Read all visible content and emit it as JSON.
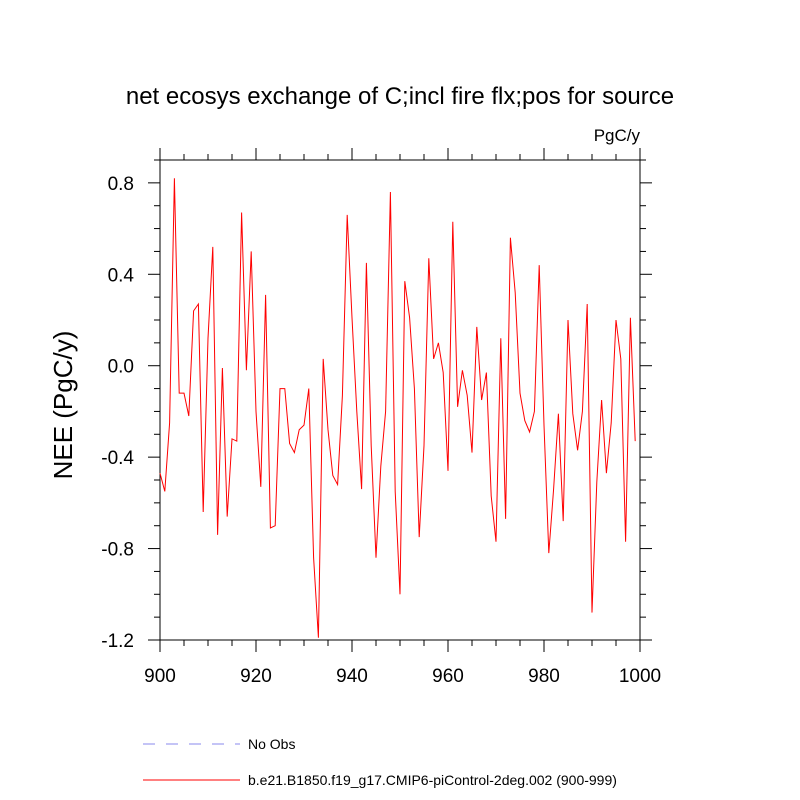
{
  "chart_data": {
    "type": "line",
    "title": "net ecosys exchange of C;incl fire flx;pos for source",
    "units": "PgC/y",
    "ylabel": "NEE  (PgC/y)",
    "xlabel": "",
    "xlim": [
      900,
      1000
    ],
    "ylim": [
      -1.2,
      0.9
    ],
    "x_ticks": [
      900,
      920,
      940,
      960,
      980,
      1000
    ],
    "y_ticks": [
      -1.2,
      -0.8,
      -0.4,
      0.0,
      0.4,
      0.8
    ],
    "x_tick_labels": [
      "900",
      "920",
      "940",
      "960",
      "980",
      "1000"
    ],
    "y_tick_labels": [
      "-1.2",
      "-0.8",
      "-0.4",
      "0.0",
      "0.4",
      "0.8"
    ],
    "grid": false,
    "legend_position": "bottom",
    "series": [
      {
        "name": "b.e21.B1850.f19_g17.CMIP6-piControl-2deg.002 (900-999)",
        "color": "#ff0000",
        "style": "solid",
        "x": [
          900,
          901,
          902,
          903,
          904,
          905,
          906,
          907,
          908,
          909,
          910,
          911,
          912,
          913,
          914,
          915,
          916,
          917,
          918,
          919,
          920,
          921,
          922,
          923,
          924,
          925,
          926,
          927,
          928,
          929,
          930,
          931,
          932,
          933,
          934,
          935,
          936,
          937,
          938,
          939,
          940,
          941,
          942,
          943,
          944,
          945,
          946,
          947,
          948,
          949,
          950,
          951,
          952,
          953,
          954,
          955,
          956,
          957,
          958,
          959,
          960,
          961,
          962,
          963,
          964,
          965,
          966,
          967,
          968,
          969,
          970,
          971,
          972,
          973,
          974,
          975,
          976,
          977,
          978,
          979,
          980,
          981,
          982,
          983,
          984,
          985,
          986,
          987,
          988,
          989,
          990,
          991,
          992,
          993,
          994,
          995,
          996,
          997,
          998,
          999
        ],
        "values": [
          -0.47,
          -0.55,
          -0.25,
          0.82,
          -0.12,
          -0.12,
          -0.22,
          0.24,
          0.27,
          -0.64,
          0.12,
          0.52,
          -0.74,
          -0.01,
          -0.66,
          -0.32,
          -0.33,
          0.67,
          -0.02,
          0.5,
          -0.2,
          -0.53,
          0.31,
          -0.71,
          -0.7,
          -0.1,
          -0.1,
          -0.34,
          -0.38,
          -0.28,
          -0.26,
          -0.1,
          -0.84,
          -1.19,
          0.03,
          -0.28,
          -0.48,
          -0.52,
          -0.13,
          0.66,
          0.21,
          -0.2,
          -0.54,
          0.45,
          -0.35,
          -0.84,
          -0.44,
          -0.2,
          0.76,
          -0.55,
          -1.0,
          0.37,
          0.21,
          -0.1,
          -0.75,
          -0.35,
          0.47,
          0.03,
          0.1,
          -0.03,
          -0.46,
          0.63,
          -0.18,
          -0.02,
          -0.13,
          -0.38,
          0.17,
          -0.15,
          -0.03,
          -0.57,
          -0.77,
          0.12,
          -0.67,
          0.56,
          0.32,
          -0.12,
          -0.24,
          -0.29,
          -0.2,
          0.44,
          -0.26,
          -0.82,
          -0.54,
          -0.21,
          -0.68,
          0.2,
          -0.21,
          -0.37,
          -0.2,
          0.27,
          -1.08,
          -0.51,
          -0.15,
          -0.47,
          -0.25,
          0.2,
          0.03,
          -0.77,
          0.21,
          -0.33
        ]
      }
    ],
    "obs_series": {
      "name": "No Obs",
      "color": "#8888ee",
      "style": "dashed"
    }
  }
}
